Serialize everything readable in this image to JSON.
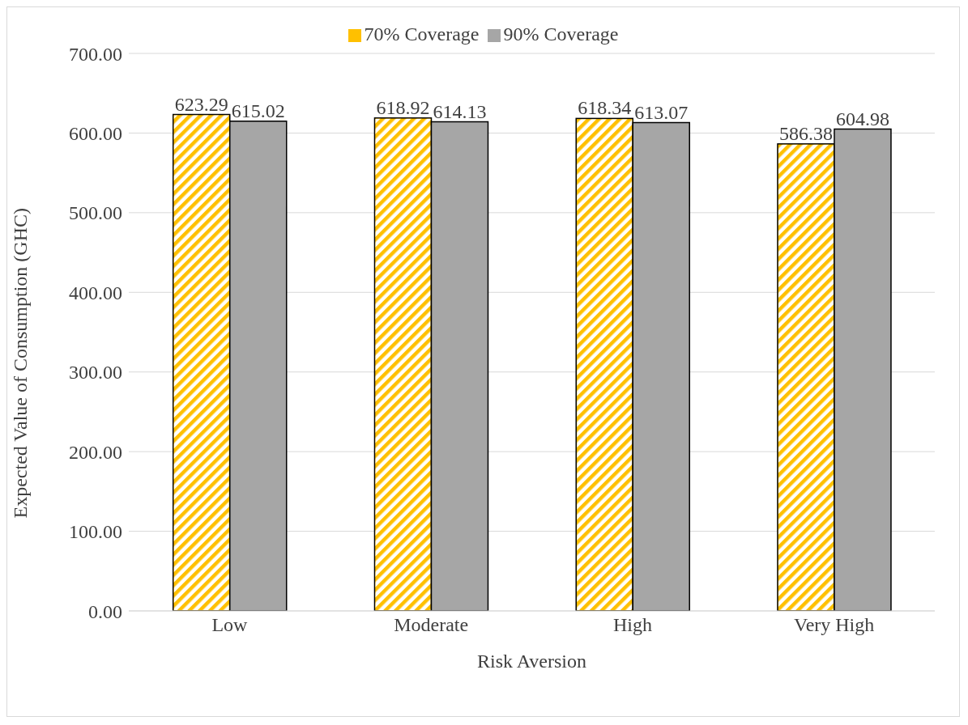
{
  "chart_data": {
    "type": "bar",
    "xlabel": "Risk Aversion",
    "ylabel": "Expected Value of Consumption (GHC)",
    "categories": [
      "Low",
      "Moderate",
      "High",
      "Very High"
    ],
    "series": [
      {
        "name": "70% Coverage",
        "color": "#ffc000",
        "values": [
          623.29,
          618.92,
          618.34,
          586.38
        ]
      },
      {
        "name": "90% Coverage",
        "color": "#a6a6a6",
        "values": [
          615.02,
          614.13,
          613.07,
          604.98
        ]
      }
    ],
    "ylim": [
      0,
      700
    ],
    "yticks": [
      {
        "value": 0,
        "label": "0.00"
      },
      {
        "value": 100,
        "label": "100.00"
      },
      {
        "value": 200,
        "label": "200.00"
      },
      {
        "value": 300,
        "label": "300.00"
      },
      {
        "value": 400,
        "label": "400.00"
      },
      {
        "value": 500,
        "label": "500.00"
      },
      {
        "value": 600,
        "label": "600.00"
      },
      {
        "value": 700,
        "label": "700.00"
      }
    ],
    "grid": "y",
    "legend": "top",
    "data_labels": true
  }
}
